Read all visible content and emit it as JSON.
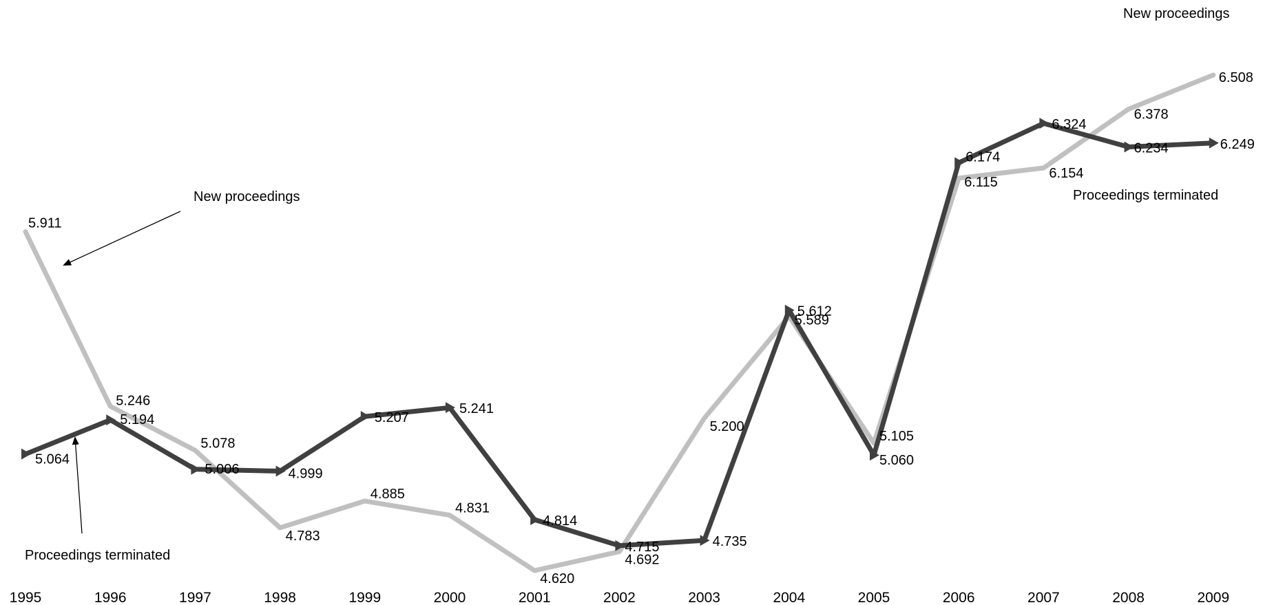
{
  "chart_data": {
    "type": "line",
    "title": "",
    "xlabel": "",
    "ylabel": "",
    "x": [
      "1995",
      "1996",
      "1997",
      "1998",
      "1999",
      "2000",
      "2001",
      "2002",
      "2003",
      "2004",
      "2005",
      "2006",
      "2007",
      "2008",
      "2009"
    ],
    "ylim": [
      4.5,
      6.65
    ],
    "grid": false,
    "series": [
      {
        "name": "New proceedings",
        "color": "#c0c0c0",
        "values": [
          5.911,
          5.246,
          5.078,
          4.783,
          4.885,
          4.831,
          4.62,
          4.692,
          5.2,
          5.589,
          5.105,
          6.115,
          6.154,
          6.378,
          6.508
        ],
        "labels": [
          "5.911",
          "5.246",
          "5.078",
          "4.783",
          "4.885",
          "4.831",
          "4.620",
          "4.692",
          "5.200",
          "5.589",
          "5.105",
          "6.115",
          "6.154",
          "6.378",
          "6.508"
        ]
      },
      {
        "name": "Proceedings terminated",
        "color": "#404040",
        "values": [
          5.064,
          5.194,
          5.006,
          4.999,
          5.207,
          5.241,
          4.814,
          4.715,
          4.735,
          5.612,
          5.06,
          6.174,
          6.324,
          6.234,
          6.249
        ],
        "labels": [
          "5.064",
          "5.194",
          "5.006",
          "4.999",
          "5.207",
          "5.241",
          "4.814",
          "4.715",
          "4.735",
          "5.612",
          "5.060",
          "6.174",
          "6.324",
          "6.234",
          "6.249"
        ]
      }
    ],
    "annotations": {
      "new_left": "New proceedings",
      "terminated_left": "Proceedings terminated",
      "new_right": "New proceedings",
      "terminated_right": "Proceedings terminated"
    }
  }
}
